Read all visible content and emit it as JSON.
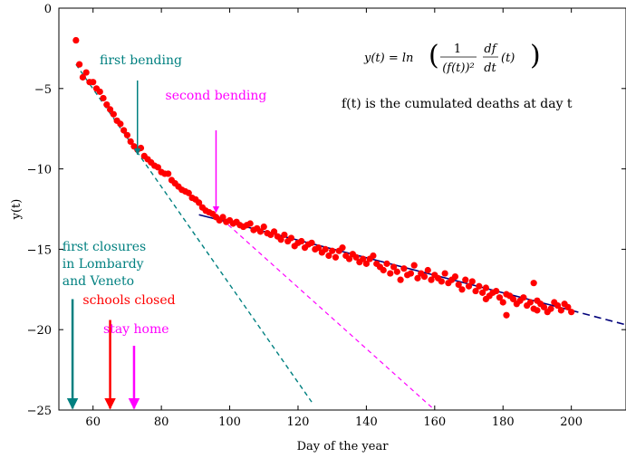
{
  "chart_data": {
    "type": "scatter",
    "title": "",
    "xlabel": "Day of the year",
    "ylabel": "y(t)",
    "xlim": [
      50,
      216
    ],
    "ylim": [
      -25,
      0
    ],
    "xticks": [
      60,
      80,
      100,
      120,
      140,
      160,
      180,
      200
    ],
    "yticks": [
      0,
      -5,
      -10,
      -15,
      -20,
      -25
    ],
    "x_tick_labels": [
      "60",
      "80",
      "100",
      "120",
      "140",
      "160",
      "180",
      "200"
    ],
    "y_tick_labels": [
      "0",
      "−5",
      "−10",
      "−15",
      "−20",
      "−25"
    ],
    "grid": false,
    "formula": {
      "lhs": "y(t) = ln",
      "numerator": "1",
      "denominator": "(f(t))²",
      "deriv_num": "df",
      "deriv_den": "dt",
      "rhs": "(t)"
    },
    "description": "f(t) is the cumulated deaths at day t",
    "series": [
      {
        "name": "data",
        "color": "#ff0000",
        "marker": "circle",
        "points": [
          [
            55,
            -2.0
          ],
          [
            56,
            -3.5
          ],
          [
            57,
            -4.3
          ],
          [
            58,
            -4.0
          ],
          [
            59,
            -4.6
          ],
          [
            60,
            -4.6
          ],
          [
            61,
            -5.0
          ],
          [
            62,
            -5.2
          ],
          [
            63,
            -5.6
          ],
          [
            64,
            -6.0
          ],
          [
            65,
            -6.3
          ],
          [
            66,
            -6.6
          ],
          [
            67,
            -7.0
          ],
          [
            68,
            -7.2
          ],
          [
            69,
            -7.6
          ],
          [
            70,
            -7.9
          ],
          [
            71,
            -8.3
          ],
          [
            72,
            -8.6
          ],
          [
            73,
            -8.8
          ],
          [
            74,
            -8.7
          ],
          [
            75,
            -9.2
          ],
          [
            76,
            -9.4
          ],
          [
            77,
            -9.6
          ],
          [
            78,
            -9.8
          ],
          [
            79,
            -9.9
          ],
          [
            80,
            -10.2
          ],
          [
            81,
            -10.3
          ],
          [
            82,
            -10.3
          ],
          [
            83,
            -10.7
          ],
          [
            84,
            -10.9
          ],
          [
            85,
            -11.1
          ],
          [
            86,
            -11.3
          ],
          [
            87,
            -11.4
          ],
          [
            88,
            -11.5
          ],
          [
            89,
            -11.8
          ],
          [
            90,
            -11.9
          ],
          [
            91,
            -12.1
          ],
          [
            92,
            -12.4
          ],
          [
            93,
            -12.6
          ],
          [
            94,
            -12.7
          ],
          [
            95,
            -12.8
          ],
          [
            96,
            -13.0
          ],
          [
            97,
            -13.2
          ],
          [
            98,
            -13.0
          ],
          [
            99,
            -13.3
          ],
          [
            100,
            -13.2
          ],
          [
            101,
            -13.4
          ],
          [
            102,
            -13.3
          ],
          [
            103,
            -13.5
          ],
          [
            104,
            -13.6
          ],
          [
            105,
            -13.5
          ],
          [
            106,
            -13.4
          ],
          [
            107,
            -13.8
          ],
          [
            108,
            -13.7
          ],
          [
            109,
            -13.9
          ],
          [
            110,
            -13.6
          ],
          [
            111,
            -14.0
          ],
          [
            112,
            -14.1
          ],
          [
            113,
            -13.9
          ],
          [
            114,
            -14.2
          ],
          [
            115,
            -14.4
          ],
          [
            116,
            -14.1
          ],
          [
            117,
            -14.5
          ],
          [
            118,
            -14.3
          ],
          [
            119,
            -14.8
          ],
          [
            120,
            -14.6
          ],
          [
            121,
            -14.5
          ],
          [
            122,
            -14.9
          ],
          [
            123,
            -14.7
          ],
          [
            124,
            -14.6
          ],
          [
            125,
            -15.0
          ],
          [
            126,
            -14.9
          ],
          [
            127,
            -15.2
          ],
          [
            128,
            -15.0
          ],
          [
            129,
            -15.4
          ],
          [
            130,
            -15.1
          ],
          [
            131,
            -15.5
          ],
          [
            132,
            -15.1
          ],
          [
            133,
            -14.9
          ],
          [
            134,
            -15.4
          ],
          [
            135,
            -15.6
          ],
          [
            136,
            -15.3
          ],
          [
            137,
            -15.5
          ],
          [
            138,
            -15.8
          ],
          [
            139,
            -15.6
          ],
          [
            140,
            -15.9
          ],
          [
            141,
            -15.6
          ],
          [
            142,
            -15.4
          ],
          [
            143,
            -15.9
          ],
          [
            144,
            -16.1
          ],
          [
            145,
            -16.3
          ],
          [
            146,
            -15.9
          ],
          [
            147,
            -16.5
          ],
          [
            148,
            -16.1
          ],
          [
            149,
            -16.4
          ],
          [
            150,
            -16.9
          ],
          [
            151,
            -16.2
          ],
          [
            152,
            -16.6
          ],
          [
            153,
            -16.5
          ],
          [
            154,
            -16.0
          ],
          [
            155,
            -16.8
          ],
          [
            156,
            -16.5
          ],
          [
            157,
            -16.7
          ],
          [
            158,
            -16.3
          ],
          [
            159,
            -16.9
          ],
          [
            160,
            -16.6
          ],
          [
            161,
            -16.8
          ],
          [
            162,
            -17.0
          ],
          [
            163,
            -16.5
          ],
          [
            164,
            -17.1
          ],
          [
            165,
            -16.9
          ],
          [
            166,
            -16.7
          ],
          [
            167,
            -17.2
          ],
          [
            168,
            -17.5
          ],
          [
            169,
            -16.9
          ],
          [
            170,
            -17.3
          ],
          [
            171,
            -17.0
          ],
          [
            172,
            -17.6
          ],
          [
            173,
            -17.3
          ],
          [
            174,
            -17.7
          ],
          [
            175,
            -17.4
          ],
          [
            176,
            -17.9
          ],
          [
            177,
            -17.7
          ],
          [
            178,
            -17.6
          ],
          [
            179,
            -18.0
          ],
          [
            180,
            -18.3
          ],
          [
            181,
            -17.8
          ],
          [
            182,
            -17.9
          ],
          [
            183,
            -18.1
          ],
          [
            184,
            -18.4
          ],
          [
            185,
            -18.2
          ],
          [
            186,
            -18.0
          ],
          [
            187,
            -18.5
          ],
          [
            188,
            -18.3
          ],
          [
            189,
            -18.7
          ],
          [
            190,
            -18.8
          ],
          [
            191,
            -18.4
          ],
          [
            192,
            -18.6
          ],
          [
            193,
            -18.9
          ],
          [
            194,
            -18.7
          ],
          [
            195,
            -18.3
          ],
          [
            196,
            -18.5
          ],
          [
            197,
            -18.8
          ],
          [
            198,
            -18.4
          ],
          [
            199,
            -18.6
          ],
          [
            200,
            -18.9
          ],
          [
            181,
            -19.1
          ],
          [
            190,
            -18.2
          ],
          [
            189,
            -17.1
          ],
          [
            175,
            -18.1
          ]
        ]
      }
    ],
    "fits": [
      {
        "color": "#008080",
        "dash": "5,4",
        "width": 1.4,
        "from": [
          55,
          -3.5
        ],
        "to": [
          124,
          -24.5
        ]
      },
      {
        "color": "#ff00ff",
        "dash": "5,4",
        "width": 1.2,
        "from": [
          96,
          -12.8
        ],
        "to": [
          160,
          -25.0
        ]
      },
      {
        "color": "#00007a",
        "dash": "none",
        "width": 1.6,
        "from": [
          91,
          -12.85
        ],
        "to": [
          200,
          -18.8
        ]
      },
      {
        "color": "#00007a",
        "dash": "8,5",
        "width": 1.6,
        "from": [
          200,
          -18.8
        ],
        "to": [
          216,
          -19.7
        ]
      }
    ],
    "annotations": [
      {
        "text": [
          "first bending"
        ],
        "color": "#008080",
        "text_at": [
          74,
          -3.5
        ],
        "anchor": "middle",
        "arrow_x": 73,
        "arrow_from": -4.5,
        "arrow_to": -9.1,
        "arrow_width": 1.5
      },
      {
        "text": [
          "second bending"
        ],
        "color": "#ff00ff",
        "text_at": [
          96,
          -5.7
        ],
        "anchor": "middle",
        "arrow_x": 96,
        "arrow_from": -7.6,
        "arrow_to": -12.7,
        "arrow_width": 1.5
      },
      {
        "text": [
          "first closures",
          "in Lombardy",
          "and Veneto"
        ],
        "color": "#008080",
        "text_at": [
          51,
          -15.1
        ],
        "anchor": "start",
        "arrow_x": 54,
        "arrow_from": -18.1,
        "arrow_to": -24.9,
        "arrow_width": 2.5
      },
      {
        "text": [
          "schools closed"
        ],
        "color": "#ff0000",
        "text_at": [
          57,
          -18.4
        ],
        "anchor": "start",
        "arrow_x": 65,
        "arrow_from": -19.4,
        "arrow_to": -24.9,
        "arrow_width": 2.5
      },
      {
        "text": [
          "stay home"
        ],
        "color": "#ff00ff",
        "text_at": [
          63,
          -20.2
        ],
        "anchor": "start",
        "arrow_x": 72,
        "arrow_from": -21.0,
        "arrow_to": -24.9,
        "arrow_width": 2.5
      }
    ]
  }
}
